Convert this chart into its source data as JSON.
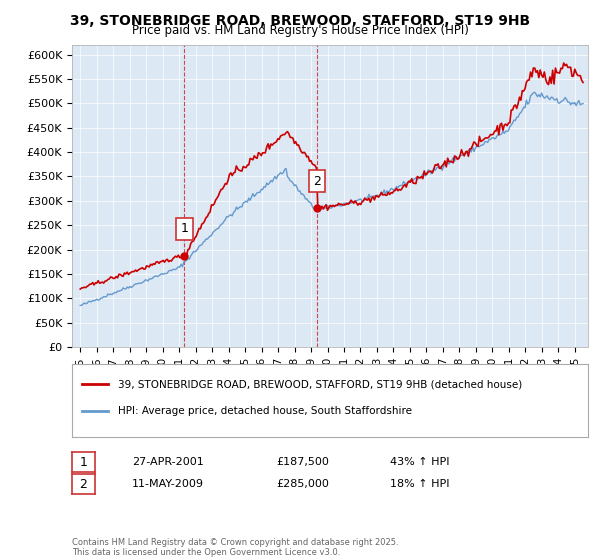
{
  "title_line1": "39, STONEBRIDGE ROAD, BREWOOD, STAFFORD, ST19 9HB",
  "title_line2": "Price paid vs. HM Land Registry's House Price Index (HPI)",
  "legend_red": "39, STONEBRIDGE ROAD, BREWOOD, STAFFORD, ST19 9HB (detached house)",
  "legend_blue": "HPI: Average price, detached house, South Staffordshire",
  "sale1_label": "1",
  "sale1_date": "27-APR-2001",
  "sale1_price": "£187,500",
  "sale1_hpi": "43% ↑ HPI",
  "sale1_year": 2001.32,
  "sale1_value": 187500,
  "sale2_label": "2",
  "sale2_date": "11-MAY-2009",
  "sale2_price": "£285,000",
  "sale2_hpi": "18% ↑ HPI",
  "sale2_year": 2009.37,
  "sale2_value": 285000,
  "red_color": "#cc0000",
  "blue_color": "#6699cc",
  "background_color": "#ffffff",
  "plot_bg_color": "#dce9f5",
  "grid_color": "#ffffff",
  "ylim_min": 0,
  "ylim_max": 620000,
  "xlim_min": 1994.5,
  "xlim_max": 2025.8,
  "footer": "Contains HM Land Registry data © Crown copyright and database right 2025.\nThis data is licensed under the Open Government Licence v3.0.",
  "yticks": [
    0,
    50000,
    100000,
    150000,
    200000,
    250000,
    300000,
    350000,
    400000,
    450000,
    500000,
    550000,
    600000
  ],
  "ytick_labels": [
    "£0",
    "£50K",
    "£100K",
    "£150K",
    "£200K",
    "£250K",
    "£300K",
    "£350K",
    "£400K",
    "£450K",
    "£500K",
    "£550K",
    "£600K"
  ]
}
